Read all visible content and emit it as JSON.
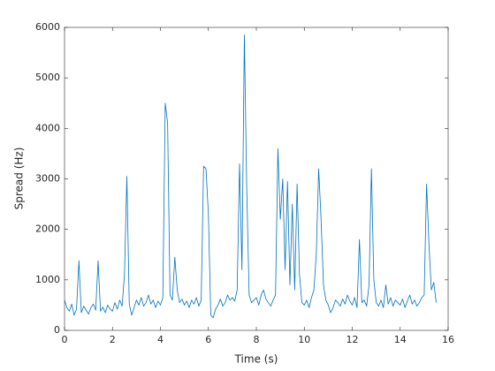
{
  "chart_data": {
    "type": "line",
    "xlabel": "Time (s)",
    "ylabel": "Spread (Hz)",
    "x": [
      0,
      0.1,
      0.2,
      0.3,
      0.4,
      0.5,
      0.6,
      0.7,
      0.8,
      0.9,
      1,
      1.1,
      1.2,
      1.3,
      1.4,
      1.5,
      1.6,
      1.7,
      1.8,
      1.9,
      2,
      2.1,
      2.2,
      2.3,
      2.4,
      2.5,
      2.6,
      2.7,
      2.8,
      2.9,
      3,
      3.1,
      3.2,
      3.3,
      3.4,
      3.5,
      3.6,
      3.7,
      3.8,
      3.9,
      4,
      4.1,
      4.2,
      4.3,
      4.4,
      4.5,
      4.6,
      4.7,
      4.8,
      4.9,
      5,
      5.1,
      5.2,
      5.3,
      5.4,
      5.5,
      5.6,
      5.7,
      5.8,
      5.9,
      6,
      6.1,
      6.2,
      6.3,
      6.4,
      6.5,
      6.6,
      6.7,
      6.8,
      6.9,
      7,
      7.1,
      7.2,
      7.3,
      7.4,
      7.5,
      7.6,
      7.7,
      7.8,
      7.9,
      8,
      8.1,
      8.2,
      8.3,
      8.4,
      8.5,
      8.6,
      8.7,
      8.8,
      8.9,
      9,
      9.1,
      9.2,
      9.3,
      9.4,
      9.5,
      9.6,
      9.7,
      9.8,
      9.9,
      10,
      10.1,
      10.2,
      10.3,
      10.4,
      10.5,
      10.6,
      10.7,
      10.8,
      10.9,
      11,
      11.1,
      11.2,
      11.3,
      11.4,
      11.5,
      11.6,
      11.7,
      11.8,
      11.9,
      12,
      12.1,
      12.2,
      12.3,
      12.4,
      12.5,
      12.6,
      12.7,
      12.8,
      12.9,
      13,
      13.1,
      13.2,
      13.3,
      13.4,
      13.5,
      13.6,
      13.7,
      13.8,
      13.9,
      14,
      14.1,
      14.2,
      14.3,
      14.4,
      14.5,
      14.6,
      14.7,
      14.8,
      14.9,
      15,
      15.1,
      15.2,
      15.3,
      15.4,
      15.5
    ],
    "series": [
      {
        "color": "#0072bd",
        "values": [
          600,
          450,
          380,
          520,
          300,
          420,
          1380,
          350,
          480,
          400,
          320,
          450,
          520,
          400,
          1380,
          380,
          460,
          350,
          500,
          420,
          380,
          550,
          420,
          600,
          480,
          1100,
          3050,
          520,
          300,
          450,
          600,
          500,
          650,
          480,
          550,
          700,
          520,
          600,
          450,
          580,
          500,
          650,
          4500,
          4100,
          700,
          600,
          1450,
          800,
          550,
          620,
          500,
          580,
          450,
          600,
          520,
          650,
          480,
          600,
          3250,
          3200,
          2300,
          300,
          250,
          420,
          500,
          620,
          480,
          550,
          700,
          600,
          650,
          580,
          800,
          3300,
          1200,
          5850,
          2800,
          700,
          550,
          600,
          650,
          500,
          700,
          800,
          620,
          550,
          480,
          600,
          700,
          3600,
          2200,
          3000,
          1200,
          2950,
          900,
          2500,
          800,
          2900,
          1100,
          550,
          500,
          600,
          450,
          650,
          800,
          1500,
          3200,
          2200,
          900,
          600,
          500,
          350,
          450,
          600,
          550,
          480,
          620,
          520,
          700,
          580,
          500,
          650,
          450,
          1800,
          550,
          600,
          480,
          900,
          3200,
          1000,
          550,
          480,
          600,
          450,
          900,
          520,
          650,
          480,
          600,
          550,
          500,
          620,
          450,
          580,
          700,
          520,
          600,
          480,
          550,
          650,
          700,
          2900,
          1700,
          800,
          950,
          550
        ]
      }
    ],
    "xlim": [
      0,
      16
    ],
    "xticks": [
      0,
      2,
      4,
      6,
      8,
      10,
      12,
      14,
      16
    ],
    "ylim": [
      0,
      6000
    ],
    "yticks": [
      0,
      1000,
      2000,
      3000,
      4000,
      5000,
      6000
    ]
  }
}
